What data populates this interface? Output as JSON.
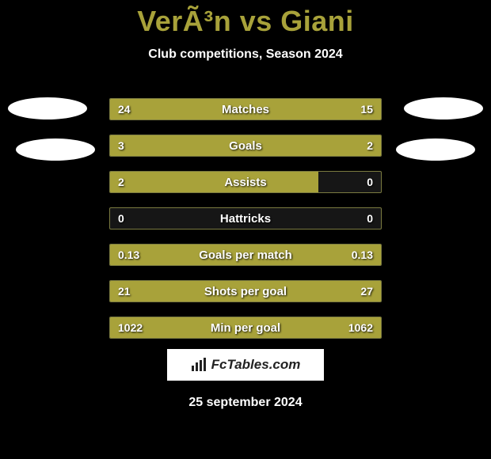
{
  "title": "VerÃ³n vs Giani",
  "subtitle": "Club competitions, Season 2024",
  "colors": {
    "background": "#000000",
    "accent": "#a8a23a",
    "bar_border": "#7a7a40",
    "bar_empty": "#161616",
    "text": "#ffffff"
  },
  "stats": [
    {
      "label": "Matches",
      "left_value": "24",
      "right_value": "15",
      "left_pct": 100,
      "right_pct": 0
    },
    {
      "label": "Goals",
      "left_value": "3",
      "right_value": "2",
      "left_pct": 100,
      "right_pct": 0
    },
    {
      "label": "Assists",
      "left_value": "2",
      "right_value": "0",
      "left_pct": 77,
      "right_pct": 0
    },
    {
      "label": "Hattricks",
      "left_value": "0",
      "right_value": "0",
      "left_pct": 0,
      "right_pct": 0
    },
    {
      "label": "Goals per match",
      "left_value": "0.13",
      "right_value": "0.13",
      "left_pct": 100,
      "right_pct": 0
    },
    {
      "label": "Shots per goal",
      "left_value": "21",
      "right_value": "27",
      "left_pct": 0,
      "right_pct": 100
    },
    {
      "label": "Min per goal",
      "left_value": "1022",
      "right_value": "1062",
      "left_pct": 0,
      "right_pct": 100
    }
  ],
  "footer": {
    "site_label": "FcTables.com",
    "date": "25 september 2024"
  }
}
